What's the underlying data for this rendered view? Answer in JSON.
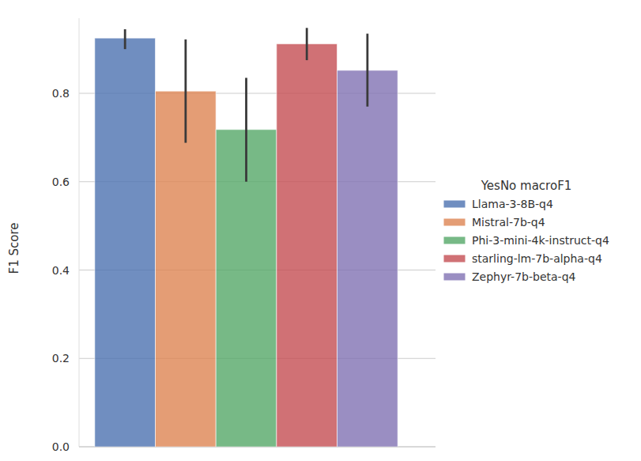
{
  "chart_data": {
    "type": "bar",
    "y_label": "F1 Score",
    "legend_title": "YesNo macroF1",
    "legend": "right",
    "grid": true,
    "categories": [
      null
    ],
    "ylim": [
      0,
      0.97
    ],
    "yticks": [
      {
        "value": 0,
        "label": "0.0"
      },
      0.2,
      0.4,
      0.6,
      0.8
    ],
    "series": [
      {
        "name": "Llama-3-8B-q4",
        "color": "#4c72b0",
        "values": [
          0.925
        ],
        "ci_low": [
          0.9
        ],
        "ci_high": [
          0.945
        ]
      },
      {
        "name": "Mistral-7b-q4",
        "color": "#dd8452",
        "values": [
          0.805
        ],
        "ci_low": [
          0.688
        ],
        "ci_high": [
          0.922
        ]
      },
      {
        "name": " Phi-3-mini-4k-instruct-q4",
        "color": "#55a868",
        "values": [
          0.718
        ],
        "ci_low": [
          0.6
        ],
        "ci_high": [
          0.835
        ]
      },
      {
        "name": "starling-lm-7b-alpha-q4",
        "color": "#c44e52",
        "values": [
          0.912
        ],
        "ci_low": [
          0.875
        ],
        "ci_high": [
          0.948
        ]
      },
      {
        "name": "Zephyr-7b-beta-q4",
        "color": "#8172b3",
        "values": [
          0.852
        ],
        "ci_low": [
          0.77
        ],
        "ci_high": [
          0.935
        ]
      }
    ]
  }
}
